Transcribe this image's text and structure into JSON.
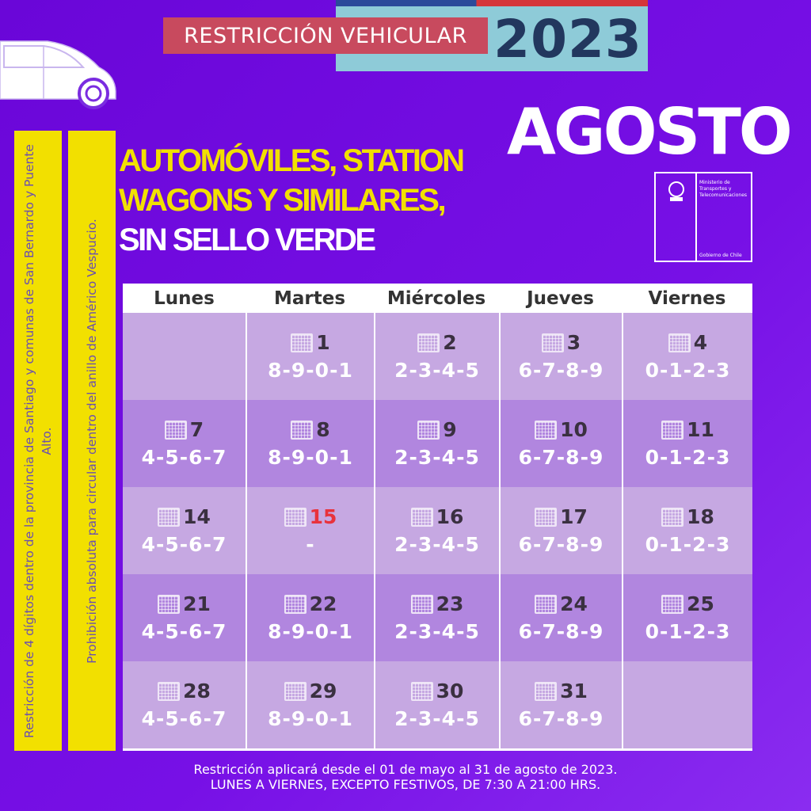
{
  "header": {
    "title": "RESTRICCIÓN VEHICULAR",
    "year": "2023",
    "month": "AGOSTO"
  },
  "vehicle_type": {
    "line1": "AUTOMÓVILES, STATION",
    "line2": "WAGONS Y SIMILARES,",
    "line3": "SIN SELLO VERDE"
  },
  "side_notes": [
    "Restricción de 4 dígitos dentro de la provincia de Santiago y comunas de San Bernardo y Puente Alto.",
    "Prohibición absoluta para circular dentro del anillo de Américo Vespucio."
  ],
  "logo": {
    "ministry": "Ministerio de Transportes y Telecomunicaciones",
    "government": "Gobierno de Chile"
  },
  "calendar": {
    "days": [
      "Lunes",
      "Martes",
      "Miércoles",
      "Jueves",
      "Viernes"
    ],
    "weeks": [
      [
        null,
        {
          "day": "1",
          "digits": "8-9-0-1"
        },
        {
          "day": "2",
          "digits": "2-3-4-5"
        },
        {
          "day": "3",
          "digits": "6-7-8-9"
        },
        {
          "day": "4",
          "digits": "0-1-2-3"
        }
      ],
      [
        {
          "day": "7",
          "digits": "4-5-6-7"
        },
        {
          "day": "8",
          "digits": "8-9-0-1"
        },
        {
          "day": "9",
          "digits": "2-3-4-5"
        },
        {
          "day": "10",
          "digits": "6-7-8-9"
        },
        {
          "day": "11",
          "digits": "0-1-2-3"
        }
      ],
      [
        {
          "day": "14",
          "digits": "4-5-6-7"
        },
        {
          "day": "15",
          "digits": "-",
          "holiday": true
        },
        {
          "day": "16",
          "digits": "2-3-4-5"
        },
        {
          "day": "17",
          "digits": "6-7-8-9"
        },
        {
          "day": "18",
          "digits": "0-1-2-3"
        }
      ],
      [
        {
          "day": "21",
          "digits": "4-5-6-7"
        },
        {
          "day": "22",
          "digits": "8-9-0-1"
        },
        {
          "day": "23",
          "digits": "2-3-4-5"
        },
        {
          "day": "24",
          "digits": "6-7-8-9"
        },
        {
          "day": "25",
          "digits": "0-1-2-3"
        }
      ],
      [
        {
          "day": "28",
          "digits": "4-5-6-7"
        },
        {
          "day": "29",
          "digits": "8-9-0-1"
        },
        {
          "day": "30",
          "digits": "2-3-4-5"
        },
        {
          "day": "31",
          "digits": "6-7-8-9"
        },
        null
      ]
    ]
  },
  "colors": {
    "holiday": "#e8323c",
    "row_light": "#c6a8e2",
    "row_dark": "#b186df"
  },
  "footer": {
    "line1": "Restricción aplicará desde el 01 de mayo al 31 de agosto de 2023.",
    "line2": "LUNES A VIERNES, EXCEPTO FESTIVOS, DE 7:30 A 21:00 HRS."
  }
}
